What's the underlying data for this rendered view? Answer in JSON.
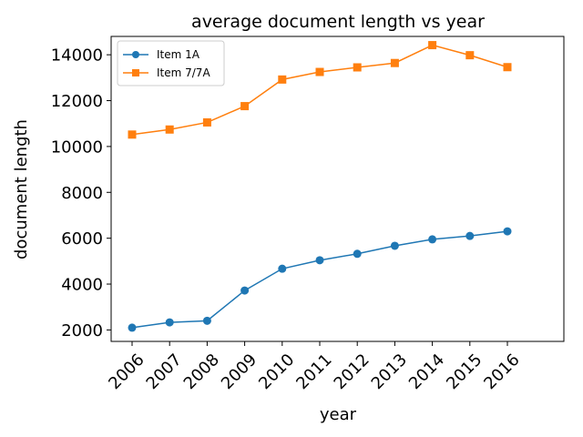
{
  "chart_data": {
    "type": "line",
    "title": "average document length vs year",
    "xlabel": "year",
    "ylabel": "document length",
    "categories": [
      "2006",
      "2007",
      "2008",
      "2009",
      "2010",
      "2011",
      "2012",
      "2013",
      "2014",
      "2015",
      "2016"
    ],
    "ylim": [
      1500,
      14800
    ],
    "yticks": [
      2000,
      4000,
      6000,
      8000,
      10000,
      12000,
      14000
    ],
    "grid": false,
    "legend_position": "top-left",
    "series": [
      {
        "name": "Item 1A",
        "color": "#1f77b4",
        "marker": "circle",
        "values": [
          2100,
          2330,
          2400,
          3720,
          4670,
          5040,
          5320,
          5670,
          5950,
          6100,
          6300
        ]
      },
      {
        "name": "Item 7/7A",
        "color": "#ff7f0e",
        "marker": "square",
        "values": [
          10520,
          10740,
          11050,
          11760,
          12920,
          13250,
          13450,
          13640,
          14420,
          13980,
          13460
        ]
      }
    ]
  }
}
